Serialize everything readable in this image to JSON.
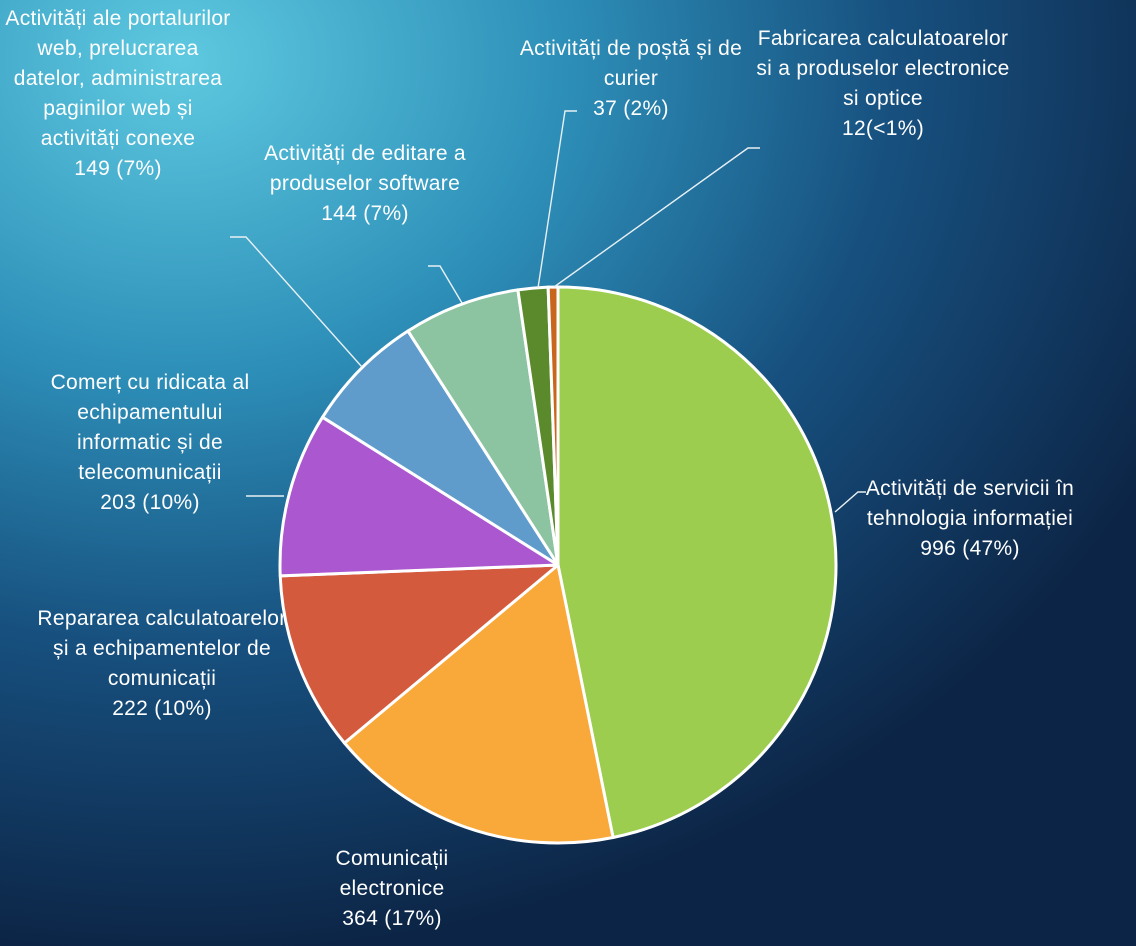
{
  "chart_data": {
    "type": "pie",
    "categories": [
      "Activități de servicii în tehnologia informației",
      "Comunicații electronice",
      "Repararea calculatoarelor și a echipamentelor de comunicații",
      "Comerț cu ridicata al echipamentului informatic și de telecomunicații",
      "Activități ale portalurilor web, prelucrarea datelor, administrarea paginilor web și activități conexe",
      "Activități de editare a produselor software",
      "Activități de poștă și de curier",
      "Fabricarea calculatoarelor si a produselor electronice si optice"
    ],
    "values": [
      996,
      364,
      222,
      203,
      149,
      144,
      37,
      12
    ],
    "value_labels": [
      "996 (47%)",
      "364 (17%)",
      "222 (10%)",
      "203 (10%)",
      "149 (7%)",
      "144 (7%)",
      "37 (2%)",
      "12(<1%)"
    ],
    "colors": [
      "#9ccd4e",
      "#f9a83a",
      "#d45a3e",
      "#ab57d0",
      "#5f9ccb",
      "#8cc3a0",
      "#5b8a2d",
      "#c9661e"
    ]
  }
}
